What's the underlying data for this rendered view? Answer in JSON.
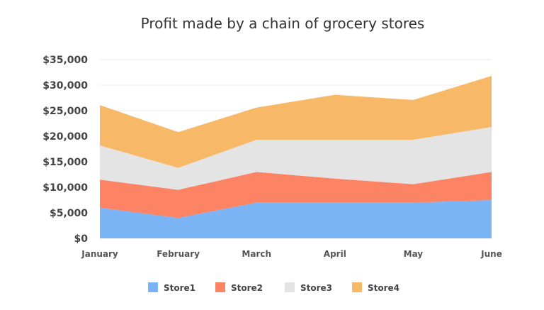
{
  "chart_data": {
    "type": "area",
    "stacked": true,
    "title": "Profit made by a chain of grocery stores",
    "xlabel": "",
    "ylabel": "",
    "categories": [
      "January",
      "February",
      "March",
      "April",
      "May",
      "June"
    ],
    "ylim": [
      0,
      35000
    ],
    "yticks": [
      0,
      5000,
      10000,
      15000,
      20000,
      25000,
      30000,
      35000
    ],
    "ytick_labels": [
      "$0",
      "$5,000",
      "$10,000",
      "$15,000",
      "$20,000",
      "$25,000",
      "$30,000",
      "$35,000"
    ],
    "grid": true,
    "legend_position": "bottom",
    "series": [
      {
        "name": "Store1",
        "color": "#7ab4f5",
        "values": [
          6000,
          4000,
          7000,
          7000,
          7000,
          7500
        ]
      },
      {
        "name": "Store2",
        "color": "#fc8465",
        "values": [
          5500,
          5500,
          6000,
          4700,
          3600,
          5500
        ]
      },
      {
        "name": "Store3",
        "color": "#e4e4e4",
        "values": [
          6700,
          4300,
          6300,
          7600,
          8700,
          8800
        ]
      },
      {
        "name": "Store4",
        "color": "#f7b967",
        "values": [
          7900,
          7000,
          6300,
          8800,
          7800,
          10000
        ]
      }
    ]
  }
}
